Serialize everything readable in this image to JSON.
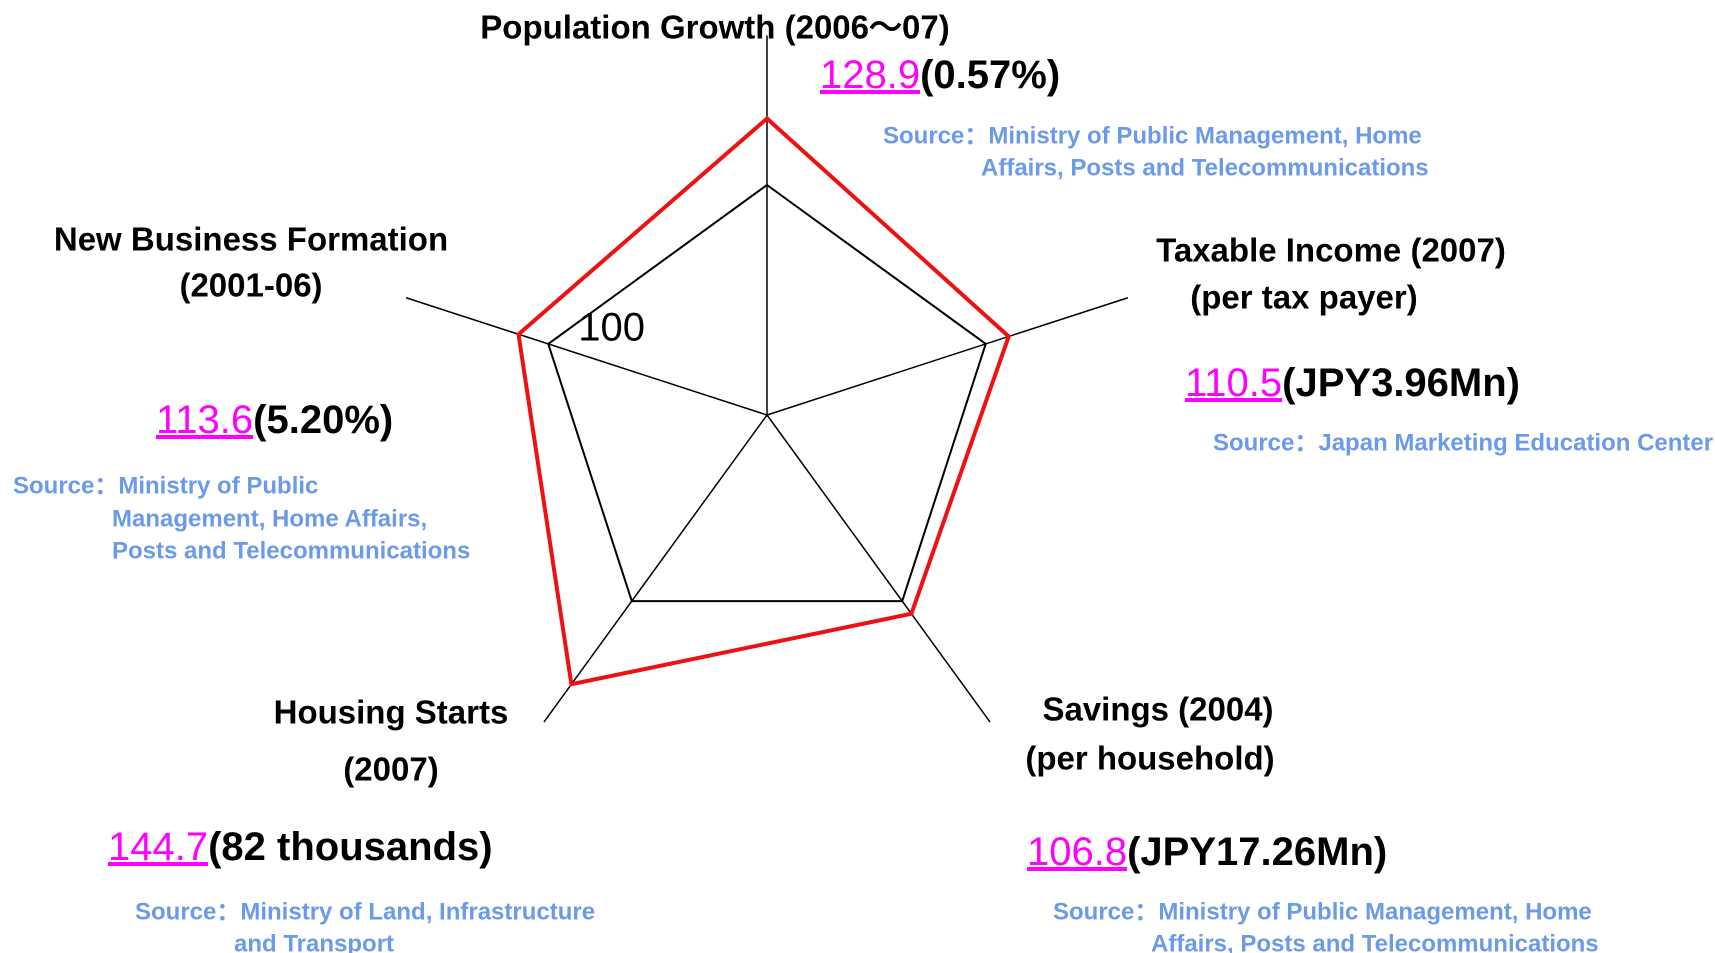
{
  "chart_data": {
    "type": "radar",
    "axes": [
      {
        "label": [
          "Population Growth (2006～07)"
        ],
        "detail": "(0.57%)",
        "source": [
          "Source：Ministry of Public Management, Home",
          "Affairs, Posts and Telecommunications"
        ]
      },
      {
        "label": [
          "Taxable Income (2007)",
          "(per tax payer)"
        ],
        "detail": "(JPY3.96Mn)",
        "source": [
          "Source：Japan Marketing Education Center"
        ]
      },
      {
        "label": [
          "Savings (2004)",
          "(per household)"
        ],
        "detail": "(JPY17.26Mn)",
        "source": [
          "Source：Ministry of Public Management, Home",
          "Affairs, Posts and Telecommunications"
        ]
      },
      {
        "label": [
          "Housing Starts",
          "(2007)"
        ],
        "detail": "(82 thousands)",
        "source": [
          "Source：Ministry of Land, Infrastructure",
          "and Transport"
        ]
      },
      {
        "label": [
          "New Business Formation",
          "(2001-06)"
        ],
        "detail": "(5.20%)",
        "source": [
          "Source：Ministry of Public",
          "Management, Home Affairs,",
          "Posts and Telecommunications"
        ]
      }
    ],
    "values": [
      128.9,
      110.5,
      106.8,
      144.7,
      113.6
    ],
    "color": "#ee1111",
    "rlim": [
      0,
      165
    ],
    "rticks": [
      100
    ]
  }
}
